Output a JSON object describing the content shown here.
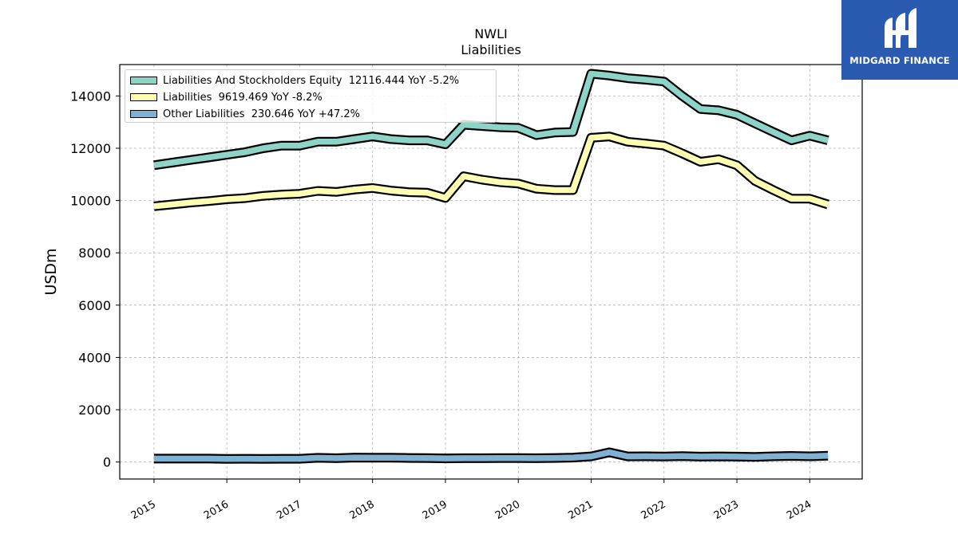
{
  "logo": {
    "text": "MIDGARD FINANCE",
    "icon": "midgard-logo-icon",
    "bg_color": "#2a5bb0"
  },
  "chart_data": {
    "type": "line",
    "title": "NWLI",
    "subtitle": "Liabilities",
    "ylabel": "USDm",
    "xlabel": "",
    "ylim": [
      -650,
      15200
    ],
    "xlim": [
      2014.53,
      2024.72
    ],
    "yticks": [
      0,
      2000,
      4000,
      6000,
      8000,
      10000,
      12000,
      14000
    ],
    "xticks": [
      2015,
      2016,
      2017,
      2018,
      2019,
      2020,
      2021,
      2022,
      2023,
      2024
    ],
    "grid": true,
    "legend_position": "top-left",
    "x": [
      2015.0,
      2015.25,
      2015.5,
      2015.75,
      2016.0,
      2016.25,
      2016.5,
      2016.75,
      2017.0,
      2017.25,
      2017.5,
      2017.75,
      2018.0,
      2018.25,
      2018.5,
      2018.75,
      2019.0,
      2019.25,
      2019.5,
      2019.75,
      2020.0,
      2020.25,
      2020.5,
      2020.75,
      2021.0,
      2021.25,
      2021.5,
      2021.75,
      2022.0,
      2022.25,
      2022.5,
      2022.75,
      2023.0,
      2023.25,
      2023.5,
      2023.75,
      2024.0,
      2024.25
    ],
    "series": [
      {
        "name": "Liabilities And Stockholders Equity",
        "legend": "Liabilities And Stockholders Equity  12116.444 YoY -5.2%",
        "color": "#8dd3c7",
        "values": [
          11350,
          11450,
          11550,
          11650,
          11750,
          11850,
          12000,
          12100,
          12100,
          12250,
          12250,
          12350,
          12450,
          12350,
          12300,
          12300,
          12150,
          12900,
          12850,
          12800,
          12780,
          12500,
          12600,
          12620,
          14850,
          14780,
          14680,
          14620,
          14550,
          14000,
          13500,
          13450,
          13280,
          12950,
          12620,
          12300,
          12480,
          12300
        ]
      },
      {
        "name": "Liabilities",
        "legend": "Liabilities  9619.469 YoY -8.2%",
        "color": "#ffffb3",
        "values": [
          9780,
          9850,
          9920,
          9980,
          10050,
          10090,
          10180,
          10230,
          10260,
          10370,
          10330,
          10420,
          10480,
          10380,
          10320,
          10300,
          10100,
          10930,
          10800,
          10700,
          10650,
          10450,
          10400,
          10400,
          12400,
          12450,
          12250,
          12180,
          12100,
          11800,
          11480,
          11580,
          11350,
          10750,
          10400,
          10070,
          10070,
          9850
        ]
      },
      {
        "name": "Other Liabilities",
        "legend": "Other Liabilities  230.646 YoY +47.2%",
        "color": "#80b1d3",
        "values": [
          130,
          130,
          130,
          130,
          120,
          125,
          120,
          125,
          125,
          160,
          145,
          170,
          165,
          165,
          155,
          150,
          140,
          145,
          145,
          150,
          150,
          145,
          155,
          170,
          215,
          370,
          215,
          220,
          210,
          225,
          205,
          215,
          205,
          195,
          220,
          235,
          220,
          240
        ]
      }
    ]
  }
}
